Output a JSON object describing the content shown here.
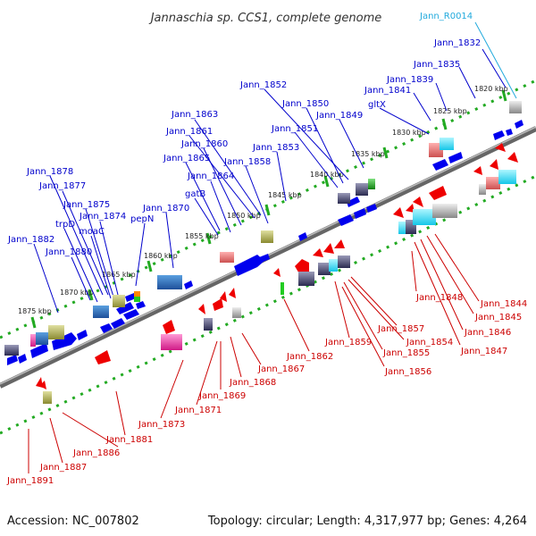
{
  "title": "Jannaschia sp. CCS1, complete genome",
  "footer": {
    "accession": "Accession: NC_007802",
    "topology": "Topology: circular; Length: 4,317,977 bp; Genes: 4,264"
  },
  "kbp_ticks": [
    "1820 kbp",
    "1825 kbp",
    "1830 kbp",
    "1835 kbp",
    "1840 kbp",
    "1845 kbp",
    "1850 kbp",
    "1855 kbp",
    "1860 kbp",
    "1865 kbp",
    "1870 kbp",
    "1875 kbp"
  ],
  "top_labels": [
    "Jann_1832",
    "Jann_1835",
    "Jann_1839",
    "Jann_1841",
    "gltX",
    "Jann_1849",
    "Jann_1850",
    "Jann_1852",
    "Jann_1851",
    "Jann_1853",
    "Jann_1863",
    "Jann_1861",
    "Jann_1860",
    "Jann_1865",
    "Jann_1858",
    "Jann_1864",
    "gatB",
    "Jann_1870",
    "pepN",
    "Jann_1878",
    "Jann_1877",
    "Jann_1875",
    "Jann_1874",
    "trpD",
    "moaC",
    "Jann_1882",
    "Jann_1880"
  ],
  "rna_labels": [
    "Jann_R0014"
  ],
  "bottom_labels": [
    "Jann_1844",
    "Jann_1845",
    "Jann_1846",
    "Jann_1847",
    "Jann_1848",
    "Jann_1857",
    "Jann_1854",
    "Jann_1859",
    "Jann_1855",
    "Jann_1856",
    "Jann_1862",
    "Jann_1867",
    "Jann_1868",
    "Jann_1869",
    "Jann_1871",
    "Jann_1873",
    "Jann_1881",
    "Jann_1886",
    "Jann_1887",
    "Jann_1891"
  ],
  "colors": {
    "forward_gene": "#0000ee",
    "reverse_gene": "#ee0000",
    "backbone": "#888888",
    "track_dots": "#22aa22",
    "rna_label": "#22aadd"
  }
}
